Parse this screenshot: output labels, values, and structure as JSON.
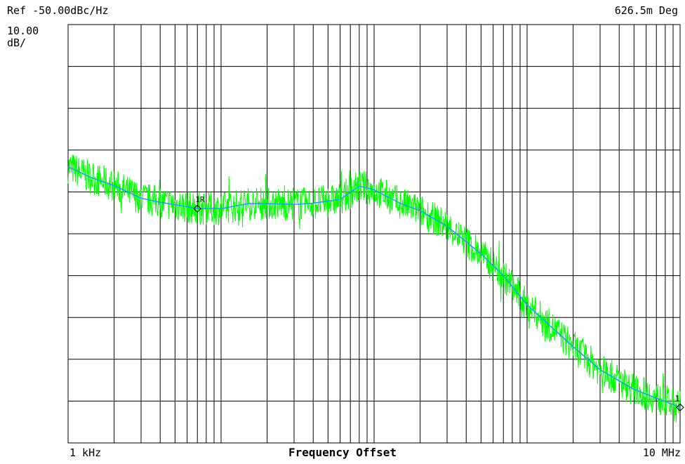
{
  "header": {
    "reference": "Ref -50.00dBc/Hz",
    "scale_value": "10.00",
    "scale_unit": "dB/",
    "integrated_phase": "626.5m Deg"
  },
  "colors": {
    "grid": "#000000",
    "raw_trace": "#00ff00",
    "smoothed_trace": "#1aa7d9",
    "marker": "#000000"
  },
  "chart_data": {
    "type": "line",
    "xlabel": "Frequency Offset",
    "x_scale": "log",
    "x_tick_labels": [
      "1 kHz",
      "10 MHz"
    ],
    "xlim_hz": [
      1000,
      10000000
    ],
    "ylim_dbc_hz": [
      -150,
      -50
    ],
    "y_divisions": 10,
    "y_per_division_db": 10,
    "grid": true,
    "series": [
      {
        "role": "smoothed",
        "x_hz": [
          1000,
          1400,
          2000,
          3000,
          4000,
          5500,
          7000,
          10000,
          15000,
          20000,
          30000,
          40000,
          50000,
          60000,
          80000,
          100000,
          150000,
          200000,
          300000,
          500000,
          700000,
          1000000,
          2000000,
          3000000,
          5000000,
          10000000
        ],
        "y_dbc_hz": [
          -84,
          -86.5,
          -88.5,
          -91.5,
          -92.5,
          -93.3,
          -94,
          -94,
          -92.8,
          -92.8,
          -93,
          -92.7,
          -92.2,
          -91.8,
          -88.6,
          -89.5,
          -92.8,
          -94.5,
          -98.2,
          -104.8,
          -110,
          -117,
          -127,
          -132.5,
          -137.2,
          -141.5
        ]
      },
      {
        "role": "raw",
        "noise_db": 4,
        "x_hz": [
          1000,
          1400,
          2000,
          3000,
          4000,
          5500,
          7000,
          10000,
          15000,
          20000,
          30000,
          40000,
          50000,
          60000,
          80000,
          100000,
          150000,
          200000,
          300000,
          500000,
          700000,
          1000000,
          2000000,
          3000000,
          5000000,
          10000000
        ],
        "y_dbc_hz": [
          -84,
          -86.5,
          -88.5,
          -91.5,
          -92.5,
          -93.3,
          -94,
          -94,
          -92.8,
          -92.8,
          -93,
          -92.7,
          -92.2,
          -91.8,
          -88.6,
          -89.5,
          -92.8,
          -94.5,
          -98.2,
          -104.8,
          -110,
          -117,
          -127,
          -132.5,
          -137.2,
          -141.5
        ]
      }
    ],
    "markers": [
      {
        "label": "1R",
        "x_hz": 7000,
        "y_dbc_hz": -94
      },
      {
        "label": "1",
        "x_hz": 10000000,
        "y_dbc_hz": -141.5
      }
    ]
  }
}
